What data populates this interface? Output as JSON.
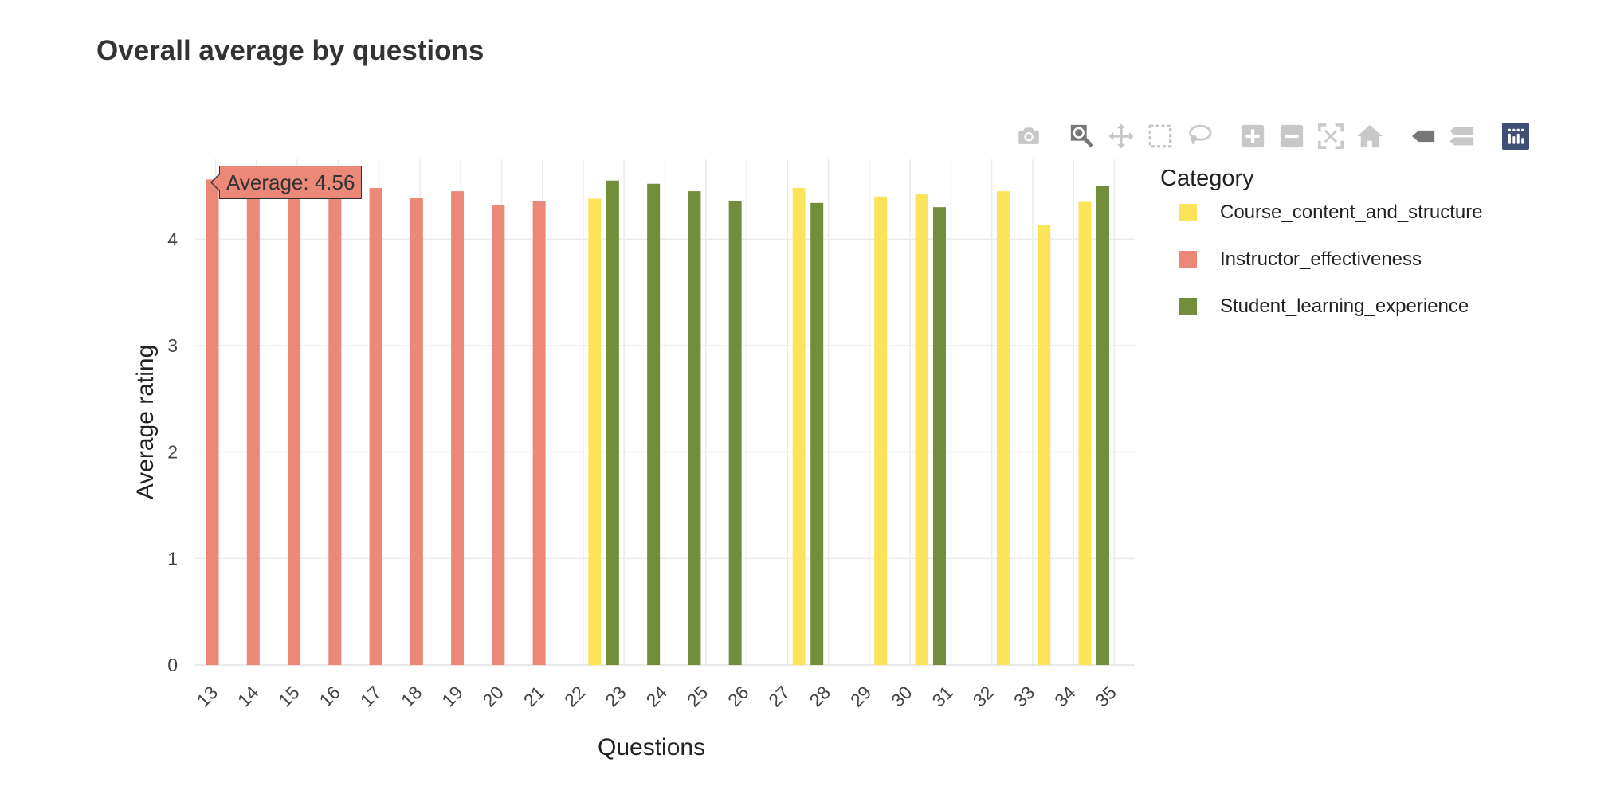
{
  "title": "Overall average by questions",
  "modebar": {
    "icons": [
      "camera-icon",
      "zoom-icon",
      "pan-icon",
      "box-select-icon",
      "lasso-select-icon",
      "zoom-in-icon",
      "zoom-out-icon",
      "autoscale-icon",
      "reset-axes-icon",
      "hover-closest-icon",
      "hover-compare-icon",
      "plotly-logo-icon"
    ]
  },
  "tooltip": {
    "text": "Average: 4.56"
  },
  "legend": {
    "title": "Category",
    "items": [
      {
        "label": "Course_content_and_structure",
        "color": "#fce45a"
      },
      {
        "label": "Instructor_effectiveness",
        "color": "#ec8878"
      },
      {
        "label": "Student_learning_experience",
        "color": "#738e3a"
      }
    ]
  },
  "chart_data": {
    "type": "bar",
    "xlabel": "Questions",
    "ylabel": "Average rating",
    "ylim": [
      0,
      4.75
    ],
    "yticks": [
      0,
      1,
      2,
      3,
      4
    ],
    "categories": [
      "13",
      "14",
      "15",
      "16",
      "17",
      "18",
      "19",
      "20",
      "21",
      "22",
      "23",
      "24",
      "25",
      "26",
      "27",
      "28",
      "29",
      "30",
      "31",
      "32",
      "33",
      "34",
      "35"
    ],
    "grid": true,
    "legend_placement": "right",
    "series": [
      {
        "name": "Course_content_and_structure",
        "color": "#fce45a",
        "points": [
          {
            "x": "22",
            "y": 4.38
          },
          {
            "x": "27",
            "y": 4.48
          },
          {
            "x": "29",
            "y": 4.4
          },
          {
            "x": "30",
            "y": 4.42
          },
          {
            "x": "32",
            "y": 4.45
          },
          {
            "x": "33",
            "y": 4.13
          },
          {
            "x": "34",
            "y": 4.35
          }
        ]
      },
      {
        "name": "Instructor_effectiveness",
        "color": "#ec8878",
        "points": [
          {
            "x": "13",
            "y": 4.56
          },
          {
            "x": "14",
            "y": 4.38
          },
          {
            "x": "15",
            "y": 4.4
          },
          {
            "x": "16",
            "y": 4.38
          },
          {
            "x": "17",
            "y": 4.48
          },
          {
            "x": "18",
            "y": 4.39
          },
          {
            "x": "19",
            "y": 4.45
          },
          {
            "x": "20",
            "y": 4.32
          },
          {
            "x": "21",
            "y": 4.36
          }
        ]
      },
      {
        "name": "Student_learning_experience",
        "color": "#738e3a",
        "points": [
          {
            "x": "23",
            "y": 4.55
          },
          {
            "x": "24",
            "y": 4.52
          },
          {
            "x": "25",
            "y": 4.45
          },
          {
            "x": "26",
            "y": 4.36
          },
          {
            "x": "28",
            "y": 4.34
          },
          {
            "x": "31",
            "y": 4.3
          },
          {
            "x": "35",
            "y": 4.5
          }
        ]
      }
    ]
  }
}
